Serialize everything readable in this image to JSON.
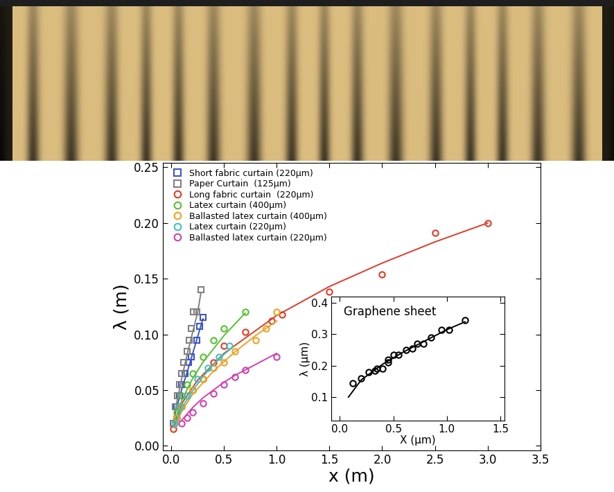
{
  "chart_data": [
    {
      "type": "scatter",
      "x_label": "x (m)",
      "y_label": "λ (m)",
      "xlim": [
        -0.08,
        3.5
      ],
      "ylim": [
        -0.004,
        0.254
      ],
      "xticks": [
        {
          "value": 0.0,
          "label": "0.0"
        },
        {
          "value": 0.5,
          "label": "0.5"
        },
        {
          "value": 1.0,
          "label": "1.0"
        },
        {
          "value": 1.5,
          "label": "1.5"
        },
        {
          "value": 2.0,
          "label": "2.0"
        },
        {
          "value": 2.5,
          "label": "2.5"
        },
        {
          "value": 3.0,
          "label": "3.0"
        },
        {
          "value": 3.5,
          "label": "3.5"
        }
      ],
      "yticks": [
        {
          "value": 0.0,
          "label": "0.00"
        },
        {
          "value": 0.05,
          "label": "0.05"
        },
        {
          "value": 0.1,
          "label": "0.10"
        },
        {
          "value": 0.15,
          "label": "0.15"
        },
        {
          "value": 0.2,
          "label": "0.20"
        },
        {
          "value": 0.25,
          "label": "0.25"
        }
      ],
      "legend": "upper left",
      "series": [
        {
          "name": "Short fabric curtain (220µm)",
          "color": "#3a55c8",
          "marker": "square",
          "x": [
            0.02,
            0.05,
            0.08,
            0.1,
            0.13,
            0.16,
            0.19,
            0.24,
            0.27,
            0.3
          ],
          "values": [
            0.02,
            0.035,
            0.045,
            0.055,
            0.065,
            0.075,
            0.08,
            0.095,
            0.107,
            0.115
          ],
          "fit": {
            "x": [
              0.02,
              0.05,
              0.1,
              0.15,
              0.2,
              0.25,
              0.3
            ],
            "values": [
              0.021,
              0.034,
              0.051,
              0.066,
              0.082,
              0.098,
              0.114
            ]
          }
        },
        {
          "name": "Paper Curtain  (125µm)",
          "color": "#808080",
          "marker": "square",
          "x": [
            0.02,
            0.04,
            0.06,
            0.08,
            0.1,
            0.12,
            0.15,
            0.17,
            0.19,
            0.21,
            0.24,
            0.28
          ],
          "values": [
            0.02,
            0.035,
            0.045,
            0.055,
            0.065,
            0.075,
            0.085,
            0.095,
            0.105,
            0.12,
            0.12,
            0.14
          ],
          "fit": {
            "x": [
              0.02,
              0.05,
              0.1,
              0.15,
              0.2,
              0.25,
              0.28
            ],
            "values": [
              0.022,
              0.038,
              0.061,
              0.082,
              0.101,
              0.12,
              0.137
            ]
          }
        },
        {
          "name": "Long fabric curtain  (220µm)",
          "color": "#e03a25",
          "marker": "circle",
          "x": [
            0.02,
            0.05,
            0.1,
            0.2,
            0.3,
            0.4,
            0.5,
            0.7,
            0.95,
            1.05,
            1.5,
            2.0,
            2.5,
            3.0
          ],
          "values": [
            0.015,
            0.025,
            0.035,
            0.05,
            0.06,
            0.075,
            0.09,
            0.102,
            0.112,
            0.118,
            0.138,
            0.154,
            0.191,
            0.2
          ],
          "fit": {
            "x": [
              0.02,
              0.1,
              0.25,
              0.5,
              1.0,
              1.5,
              2.0,
              2.5,
              3.0
            ],
            "values": [
              0.017,
              0.038,
              0.059,
              0.083,
              0.117,
              0.143,
              0.164,
              0.183,
              0.2
            ]
          }
        },
        {
          "name": "Latex curtain (400µm)",
          "color": "#55c030",
          "marker": "circle",
          "x": [
            0.05,
            0.1,
            0.15,
            0.2,
            0.3,
            0.4,
            0.5,
            0.7
          ],
          "values": [
            0.03,
            0.045,
            0.055,
            0.065,
            0.08,
            0.095,
            0.105,
            0.12
          ],
          "fit": {
            "x": [
              0.03,
              0.1,
              0.2,
              0.3,
              0.4,
              0.5,
              0.6,
              0.7
            ],
            "values": [
              0.021,
              0.041,
              0.06,
              0.075,
              0.087,
              0.099,
              0.109,
              0.119
            ]
          }
        },
        {
          "name": "Ballasted latex curtain (400µm)",
          "color": "#f0a020",
          "marker": "circle",
          "x": [
            0.05,
            0.1,
            0.2,
            0.3,
            0.4,
            0.5,
            0.6,
            0.8,
            0.9,
            1.0
          ],
          "values": [
            0.025,
            0.035,
            0.05,
            0.06,
            0.07,
            0.075,
            0.085,
            0.095,
            0.105,
            0.12
          ],
          "fit": {
            "x": [
              0.03,
              0.1,
              0.2,
              0.4,
              0.6,
              0.8,
              1.0
            ],
            "values": [
              0.016,
              0.031,
              0.046,
              0.067,
              0.084,
              0.099,
              0.112
            ]
          }
        },
        {
          "name": "Latex curtain (220µm)",
          "color": "#40c0c0",
          "marker": "circle",
          "x": [
            0.03,
            0.08,
            0.15,
            0.25,
            0.35,
            0.45,
            0.55
          ],
          "values": [
            0.02,
            0.035,
            0.045,
            0.06,
            0.07,
            0.08,
            0.09
          ],
          "fit": {
            "x": [
              0.03,
              0.1,
              0.2,
              0.3,
              0.4,
              0.5,
              0.55
            ],
            "values": [
              0.017,
              0.034,
              0.049,
              0.062,
              0.073,
              0.082,
              0.086
            ]
          }
        },
        {
          "name": "Ballasted latex curtain (220µm)",
          "color": "#d040b0",
          "marker": "circle",
          "x": [
            0.1,
            0.15,
            0.2,
            0.3,
            0.4,
            0.5,
            0.6,
            0.7,
            1.0
          ],
          "values": [
            0.02,
            0.025,
            0.03,
            0.038,
            0.047,
            0.055,
            0.062,
            0.068,
            0.08
          ],
          "fit": {
            "x": [
              0.1,
              0.2,
              0.3,
              0.4,
              0.5,
              0.6,
              0.8,
              1.0
            ],
            "values": [
              0.023,
              0.034,
              0.043,
              0.05,
              0.057,
              0.063,
              0.073,
              0.083
            ]
          }
        }
      ]
    },
    {
      "type": "scatter",
      "annotation": "Graphene sheet",
      "x_label": "X (µm)",
      "y_label": "λ (µm)",
      "xlim": [
        -0.08,
        1.54
      ],
      "ylim": [
        0.025,
        0.42
      ],
      "xticks": [
        {
          "value": 0.0,
          "label": "0.0"
        },
        {
          "value": 0.5,
          "label": "0.5"
        },
        {
          "value": 1.0,
          "label": "1.0"
        },
        {
          "value": 1.5,
          "label": "1.5"
        }
      ],
      "yticks": [
        {
          "value": 0.1,
          "label": "0.1"
        },
        {
          "value": 0.2,
          "label": "0.2"
        },
        {
          "value": 0.3,
          "label": "0.3"
        },
        {
          "value": 0.4,
          "label": "0.4"
        }
      ],
      "series": [
        {
          "color": "#000000",
          "marker": "circle",
          "x": [
            0.12,
            0.2,
            0.27,
            0.33,
            0.35,
            0.4,
            0.45,
            0.45,
            0.5,
            0.55,
            0.62,
            0.68,
            0.72,
            0.78,
            0.85,
            0.95,
            1.02,
            1.17
          ],
          "values": [
            0.145,
            0.16,
            0.18,
            0.185,
            0.19,
            0.19,
            0.21,
            0.22,
            0.235,
            0.235,
            0.25,
            0.255,
            0.27,
            0.27,
            0.29,
            0.315,
            0.315,
            0.345
          ],
          "fit": {
            "x": [
              0.08,
              0.2,
              0.4,
              0.6,
              0.8,
              1.0,
              1.17
            ],
            "values": [
              0.1,
              0.155,
              0.205,
              0.245,
              0.28,
              0.315,
              0.34
            ]
          }
        }
      ]
    }
  ]
}
